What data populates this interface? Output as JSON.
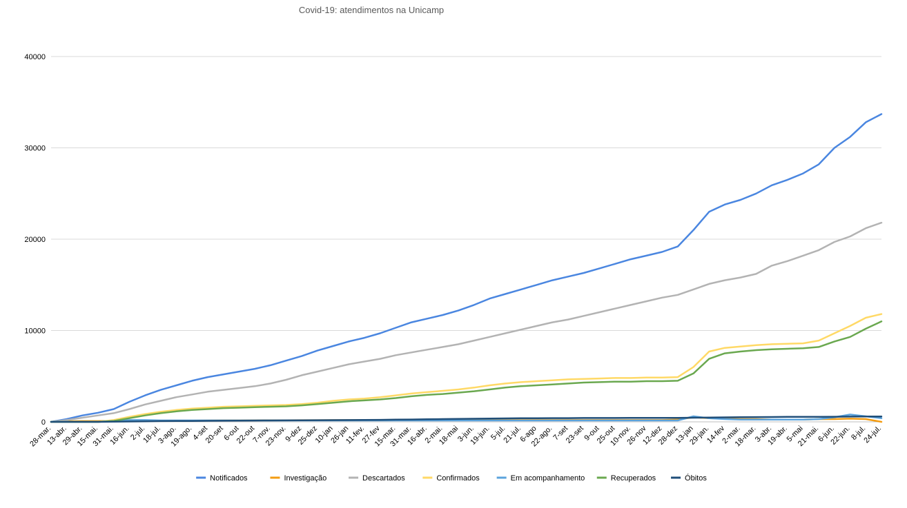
{
  "chart_data": {
    "type": "line",
    "title": "Covid-19: atendimentos na Unicamp",
    "xlabel": "",
    "ylabel": "",
    "ylim": [
      0,
      40000
    ],
    "y_ticks": [
      0,
      10000,
      20000,
      30000,
      40000
    ],
    "grid": true,
    "legend_position": "bottom",
    "x": [
      "28-mar.",
      "13-abr.",
      "29-abr.",
      "15-mai.",
      "31-mai.",
      "16-jun.",
      "2-jul.",
      "18-jul.",
      "3-ago.",
      "19-ago.",
      "4-set",
      "20-set",
      "6-out",
      "22-out",
      "7-nov.",
      "23-nov.",
      "9-dez",
      "25-dez",
      "10-jan",
      "26-jan",
      "11-fev.",
      "27-fev",
      "15-mar.",
      "31-mar.",
      "16-abr.",
      "2-mai.",
      "18-mai",
      "3-jun.",
      "19-jun.",
      "5-jul.",
      "21-jul.",
      "6-ago",
      "22-ago.",
      "7-set",
      "23-set",
      "9-out",
      "25-out",
      "10-nov.",
      "26-nov",
      "12-dez",
      "28-dez",
      "13-jan",
      "29-jan.",
      "14-fev",
      "2-mar.",
      "18-mar.",
      "3-abr.",
      "19-abr.",
      "5-mai",
      "21-mai.",
      "6-jun.",
      "22-jun.",
      "8-jul.",
      "24-jul."
    ],
    "series": [
      {
        "name": "Notificados",
        "color": "#4a86e0",
        "values": [
          0,
          300,
          700,
          1000,
          1400,
          2200,
          2900,
          3500,
          4000,
          4500,
          4900,
          5200,
          5500,
          5800,
          6200,
          6700,
          7200,
          7800,
          8300,
          8800,
          9200,
          9700,
          10300,
          10900,
          11300,
          11700,
          12200,
          12800,
          13500,
          14000,
          14500,
          15000,
          15500,
          15900,
          16300,
          16800,
          17300,
          17800,
          18200,
          18600,
          19200,
          21000,
          23000,
          23800,
          24300,
          25000,
          25900,
          26500,
          27200,
          28200,
          30000,
          31200,
          32800,
          33700
        ]
      },
      {
        "name": "Investigação",
        "color": "#f39c12",
        "values": [
          0,
          50,
          80,
          80,
          90,
          100,
          110,
          120,
          120,
          130,
          140,
          150,
          150,
          160,
          170,
          170,
          180,
          180,
          190,
          190,
          200,
          200,
          200,
          200,
          200,
          200,
          200,
          200,
          200,
          200,
          200,
          200,
          200,
          200,
          200,
          200,
          200,
          200,
          200,
          200,
          250,
          500,
          400,
          350,
          300,
          300,
          250,
          250,
          250,
          300,
          300,
          350,
          300,
          0
        ]
      },
      {
        "name": "Descartados",
        "color": "#b3b3b3",
        "values": [
          0,
          200,
          450,
          700,
          950,
          1400,
          1900,
          2300,
          2700,
          3000,
          3300,
          3500,
          3700,
          3900,
          4200,
          4600,
          5100,
          5500,
          5900,
          6300,
          6600,
          6900,
          7300,
          7600,
          7900,
          8200,
          8500,
          8900,
          9300,
          9700,
          10100,
          10500,
          10900,
          11200,
          11600,
          12000,
          12400,
          12800,
          13200,
          13600,
          13900,
          14500,
          15100,
          15500,
          15800,
          16200,
          17100,
          17600,
          18200,
          18800,
          19700,
          20300,
          21200,
          21800
        ]
      },
      {
        "name": "Confirmados",
        "color": "#ffd966",
        "values": [
          0,
          0,
          0,
          0,
          200,
          550,
          850,
          1100,
          1300,
          1450,
          1550,
          1650,
          1700,
          1750,
          1800,
          1850,
          1950,
          2100,
          2300,
          2450,
          2550,
          2700,
          2900,
          3100,
          3250,
          3400,
          3550,
          3750,
          4000,
          4200,
          4350,
          4450,
          4550,
          4650,
          4700,
          4750,
          4800,
          4800,
          4850,
          4850,
          4900,
          6000,
          7700,
          8100,
          8250,
          8400,
          8500,
          8550,
          8600,
          8900,
          9700,
          10500,
          11400,
          11800
        ]
      },
      {
        "name": "Em acompanhamento",
        "color": "#5ba3dc",
        "values": [
          0,
          0,
          0,
          0,
          100,
          200,
          200,
          150,
          150,
          150,
          150,
          150,
          150,
          150,
          150,
          150,
          150,
          150,
          150,
          150,
          150,
          150,
          150,
          150,
          150,
          150,
          150,
          150,
          150,
          150,
          150,
          150,
          150,
          150,
          150,
          150,
          150,
          150,
          150,
          150,
          150,
          600,
          400,
          300,
          250,
          250,
          250,
          250,
          250,
          300,
          500,
          800,
          600,
          400
        ]
      },
      {
        "name": "Recuperados",
        "color": "#6aa84f",
        "values": [
          0,
          0,
          0,
          0,
          100,
          400,
          700,
          950,
          1150,
          1300,
          1400,
          1500,
          1550,
          1600,
          1650,
          1700,
          1800,
          1950,
          2100,
          2250,
          2350,
          2450,
          2600,
          2800,
          2950,
          3050,
          3200,
          3350,
          3550,
          3750,
          3900,
          4000,
          4100,
          4200,
          4300,
          4350,
          4400,
          4400,
          4450,
          4450,
          4500,
          5300,
          6900,
          7500,
          7700,
          7850,
          7950,
          8000,
          8050,
          8200,
          8800,
          9300,
          10200,
          11000
        ]
      },
      {
        "name": "Óbitos",
        "color": "#1f4e79",
        "values": [
          0,
          0,
          0,
          0,
          20,
          40,
          60,
          80,
          90,
          100,
          110,
          120,
          130,
          140,
          150,
          160,
          170,
          180,
          190,
          200,
          210,
          220,
          240,
          260,
          280,
          300,
          320,
          340,
          360,
          380,
          390,
          400,
          410,
          410,
          420,
          420,
          420,
          430,
          430,
          430,
          440,
          450,
          470,
          490,
          510,
          520,
          530,
          540,
          540,
          550,
          560,
          570,
          580,
          590
        ]
      }
    ]
  }
}
